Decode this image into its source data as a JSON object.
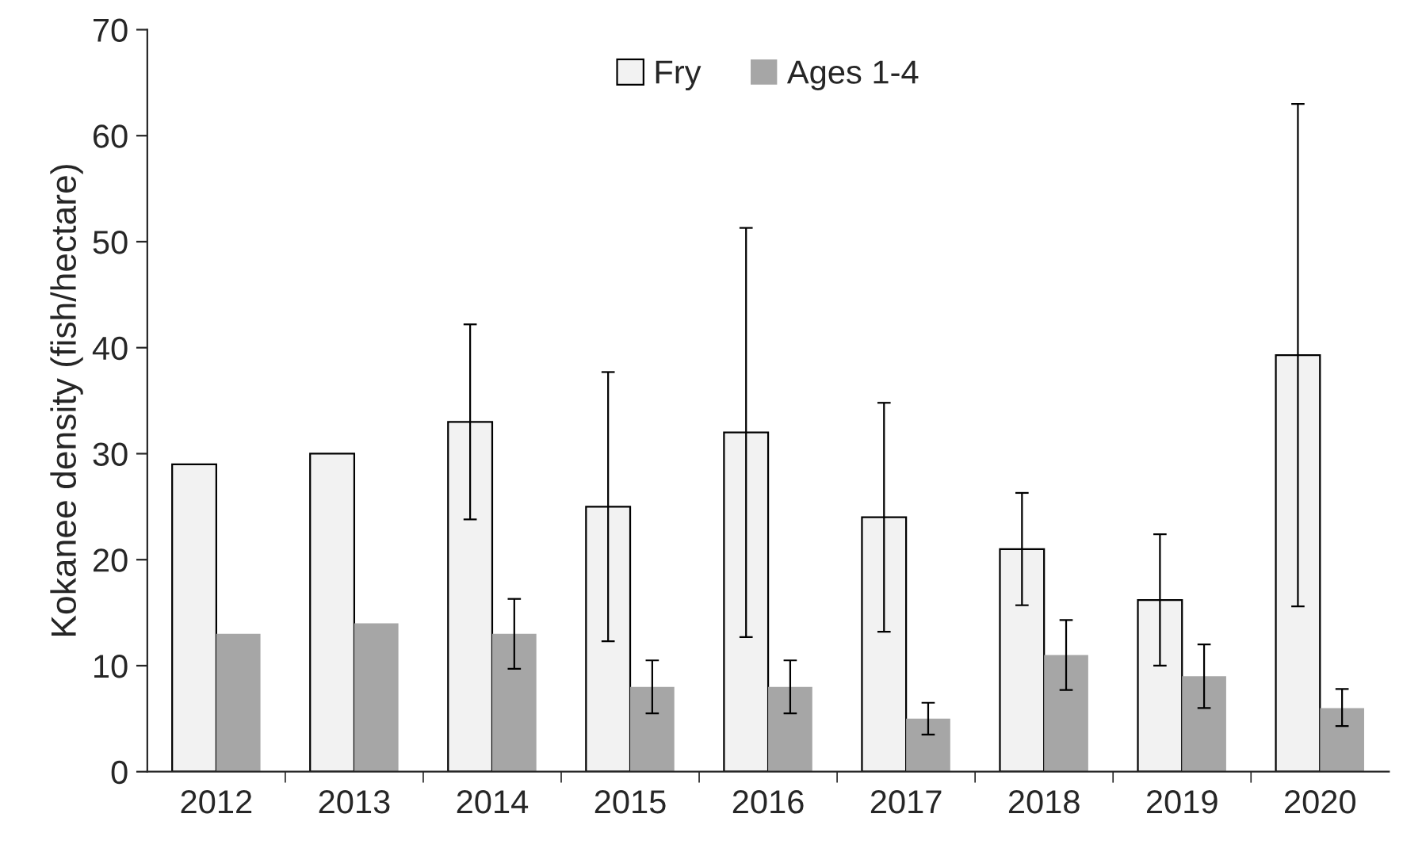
{
  "chart_data": {
    "type": "bar",
    "ylabel": "Kokanee density (fish/hectare)",
    "categories": [
      "2012",
      "2013",
      "2014",
      "2015",
      "2016",
      "2017",
      "2018",
      "2019",
      "2020"
    ],
    "series": [
      {
        "name": "Fry",
        "color": "#f2f2f2",
        "values": [
          29,
          30,
          33,
          25,
          32,
          24,
          21,
          16.2,
          39.3
        ],
        "errors": [
          null,
          null,
          [
            23.8,
            42.2
          ],
          [
            12.3,
            37.7
          ],
          [
            12.7,
            51.3
          ],
          [
            13.2,
            34.8
          ],
          [
            15.7,
            26.3
          ],
          [
            10,
            22.4
          ],
          [
            15.6,
            63
          ]
        ]
      },
      {
        "name": "Ages 1-4",
        "color": "#a6a6a6",
        "values": [
          13,
          14,
          13,
          8,
          8,
          5,
          11,
          9,
          6
        ],
        "errors": [
          null,
          null,
          [
            9.7,
            16.3
          ],
          [
            5.5,
            10.5
          ],
          [
            5.5,
            10.5
          ],
          [
            3.5,
            6.5
          ],
          [
            7.7,
            14.3
          ],
          [
            6,
            12
          ],
          [
            4.3,
            7.8
          ]
        ]
      }
    ],
    "ylim": [
      0,
      70
    ],
    "yticks": [
      0,
      10,
      20,
      30,
      40,
      50,
      60,
      70
    ],
    "grid": false,
    "legend": "top"
  }
}
